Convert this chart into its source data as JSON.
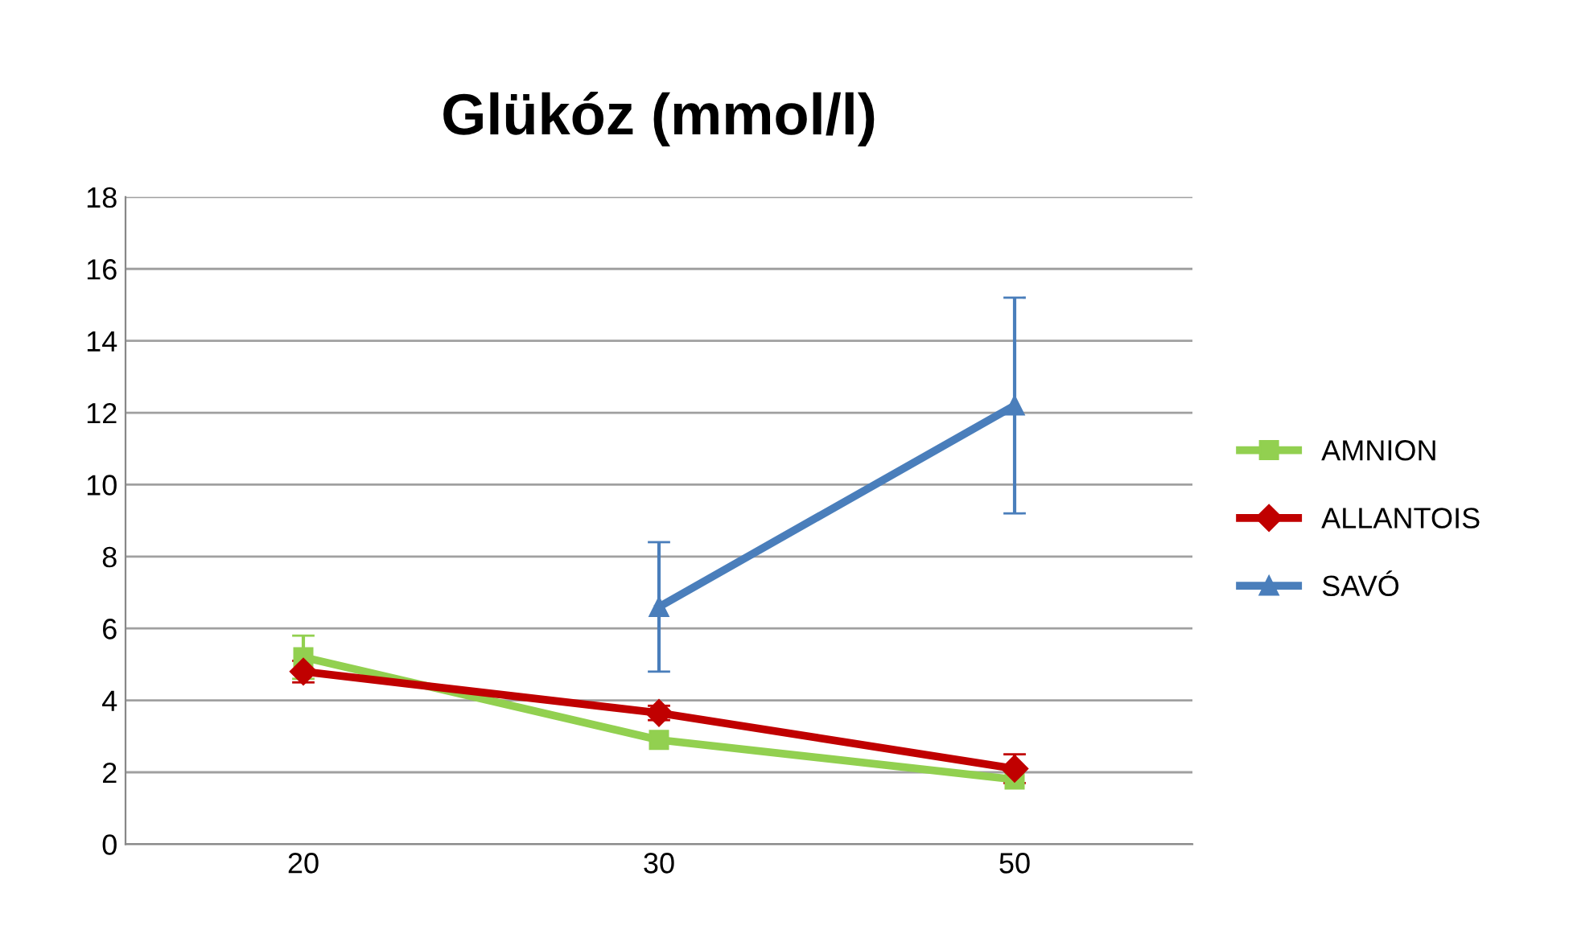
{
  "chart_data": {
    "type": "line",
    "title": "Glükóz (mmol/l)",
    "categories": [
      "20",
      "30",
      "50"
    ],
    "series": [
      {
        "name": "AMNION",
        "color": "#92d050",
        "marker": "square",
        "values": [
          5.2,
          2.9,
          1.8
        ],
        "errors": [
          0.6,
          null,
          null
        ]
      },
      {
        "name": "ALLANTOIS",
        "color": "#c00000",
        "marker": "diamond",
        "values": [
          4.8,
          3.65,
          2.1
        ],
        "errors": [
          0.3,
          0.2,
          0.4
        ]
      },
      {
        "name": "SAVÓ",
        "color": "#4a7ebb",
        "marker": "triangle",
        "values": [
          null,
          6.6,
          12.2
        ],
        "errors": [
          null,
          1.8,
          3.0
        ]
      }
    ],
    "ylim": [
      0,
      18
    ],
    "yticks": [
      0,
      2,
      4,
      6,
      8,
      10,
      12,
      14,
      16,
      18
    ],
    "grid": "y",
    "legend": "right"
  }
}
